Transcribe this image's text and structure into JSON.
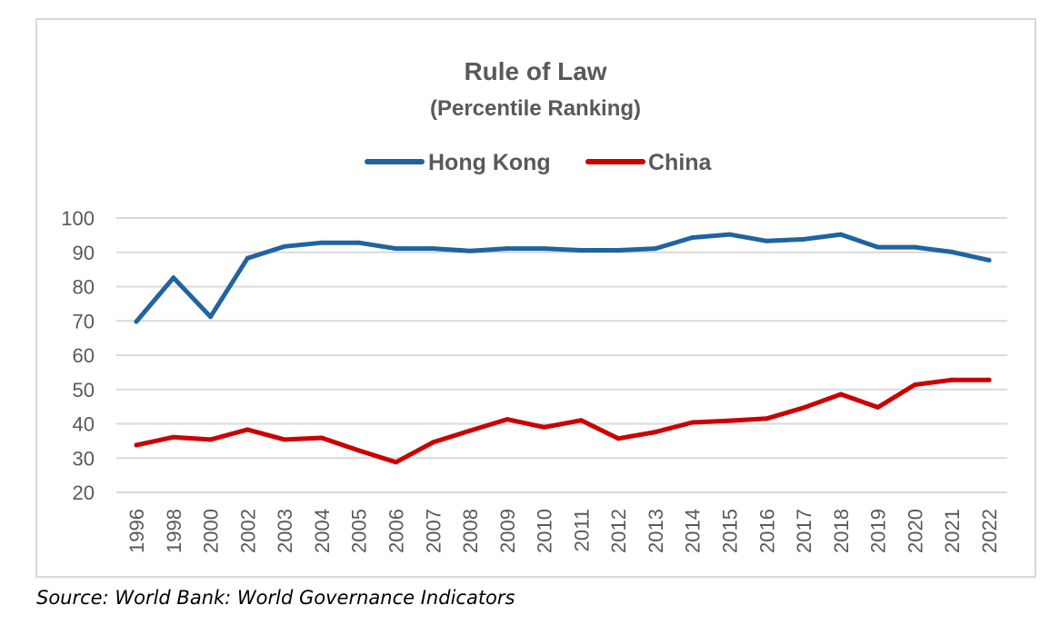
{
  "source_note": "Source: World Bank: World Governance Indicators",
  "chart_data": {
    "type": "line",
    "title": "Rule of Law",
    "subtitle": "(Percentile Ranking)",
    "xlabel": "",
    "ylabel": "",
    "ylim": [
      20,
      100
    ],
    "yticks": [
      100,
      90,
      80,
      70,
      60,
      50,
      40,
      30,
      20
    ],
    "grid": true,
    "legend_position": "top",
    "categories": [
      "1996",
      "1998",
      "2000",
      "2002",
      "2003",
      "2004",
      "2005",
      "2006",
      "2007",
      "2008",
      "2009",
      "2010",
      "2011",
      "2012",
      "2013",
      "2014",
      "2015",
      "2016",
      "2017",
      "2018",
      "2019",
      "2020",
      "2021",
      "2022"
    ],
    "series": [
      {
        "name": "Hong Kong",
        "color": "#1f64a0",
        "values": [
          69.8,
          82.6,
          71.2,
          88.3,
          91.7,
          92.8,
          92.8,
          91.1,
          91.1,
          90.4,
          91.1,
          91.1,
          90.6,
          90.6,
          91.1,
          94.3,
          95.2,
          93.3,
          93.8,
          95.2,
          91.5,
          91.5,
          90.1,
          87.7
        ]
      },
      {
        "name": "China",
        "color": "#cc0000",
        "values": [
          33.8,
          36.1,
          35.4,
          38.3,
          35.4,
          35.9,
          32.2,
          28.8,
          34.6,
          38.0,
          41.3,
          39.0,
          41.0,
          35.7,
          37.6,
          40.4,
          40.9,
          41.5,
          44.7,
          48.6,
          44.8,
          51.4,
          52.8,
          52.8
        ]
      }
    ]
  }
}
